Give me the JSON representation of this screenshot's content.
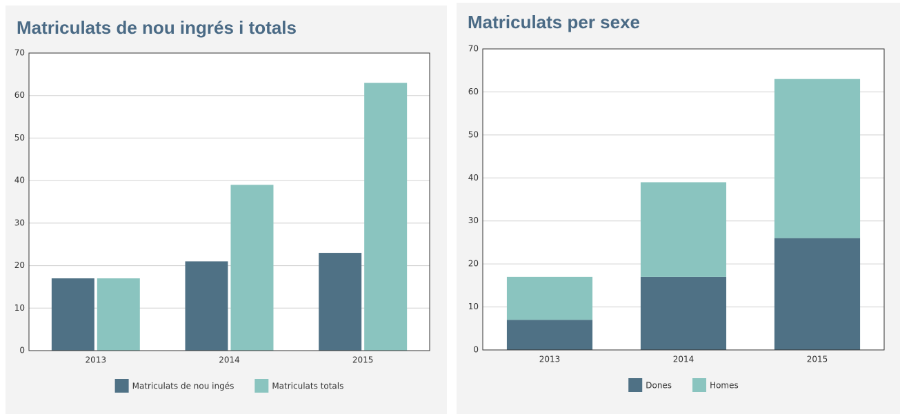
{
  "chart_data": [
    {
      "type": "bar",
      "title": "Matriculats de nou ingrés i totals",
      "categories": [
        "2013",
        "2014",
        "2015"
      ],
      "series": [
        {
          "name": "Matriculats de nou ingés",
          "color": "#4f7185",
          "values": [
            17,
            21,
            23
          ]
        },
        {
          "name": "Matriculats totals",
          "color": "#8ac4bf",
          "values": [
            17,
            39,
            63
          ]
        }
      ],
      "ylim": [
        0,
        70
      ],
      "yticks": [
        0,
        10,
        20,
        30,
        40,
        50,
        60,
        70
      ],
      "grid": true,
      "legend": "bottom"
    },
    {
      "type": "stacked_bar",
      "title": "Matriculats per sexe",
      "categories": [
        "2013",
        "2014",
        "2015"
      ],
      "series": [
        {
          "name": "Dones",
          "color": "#4f7185",
          "values": [
            7,
            17,
            26
          ]
        },
        {
          "name": "Homes",
          "color": "#8ac4bf",
          "values": [
            10,
            22,
            37
          ]
        }
      ],
      "ylim": [
        0,
        70
      ],
      "yticks": [
        0,
        10,
        20,
        30,
        40,
        50,
        60,
        70
      ],
      "grid": true,
      "legend": "bottom"
    }
  ]
}
